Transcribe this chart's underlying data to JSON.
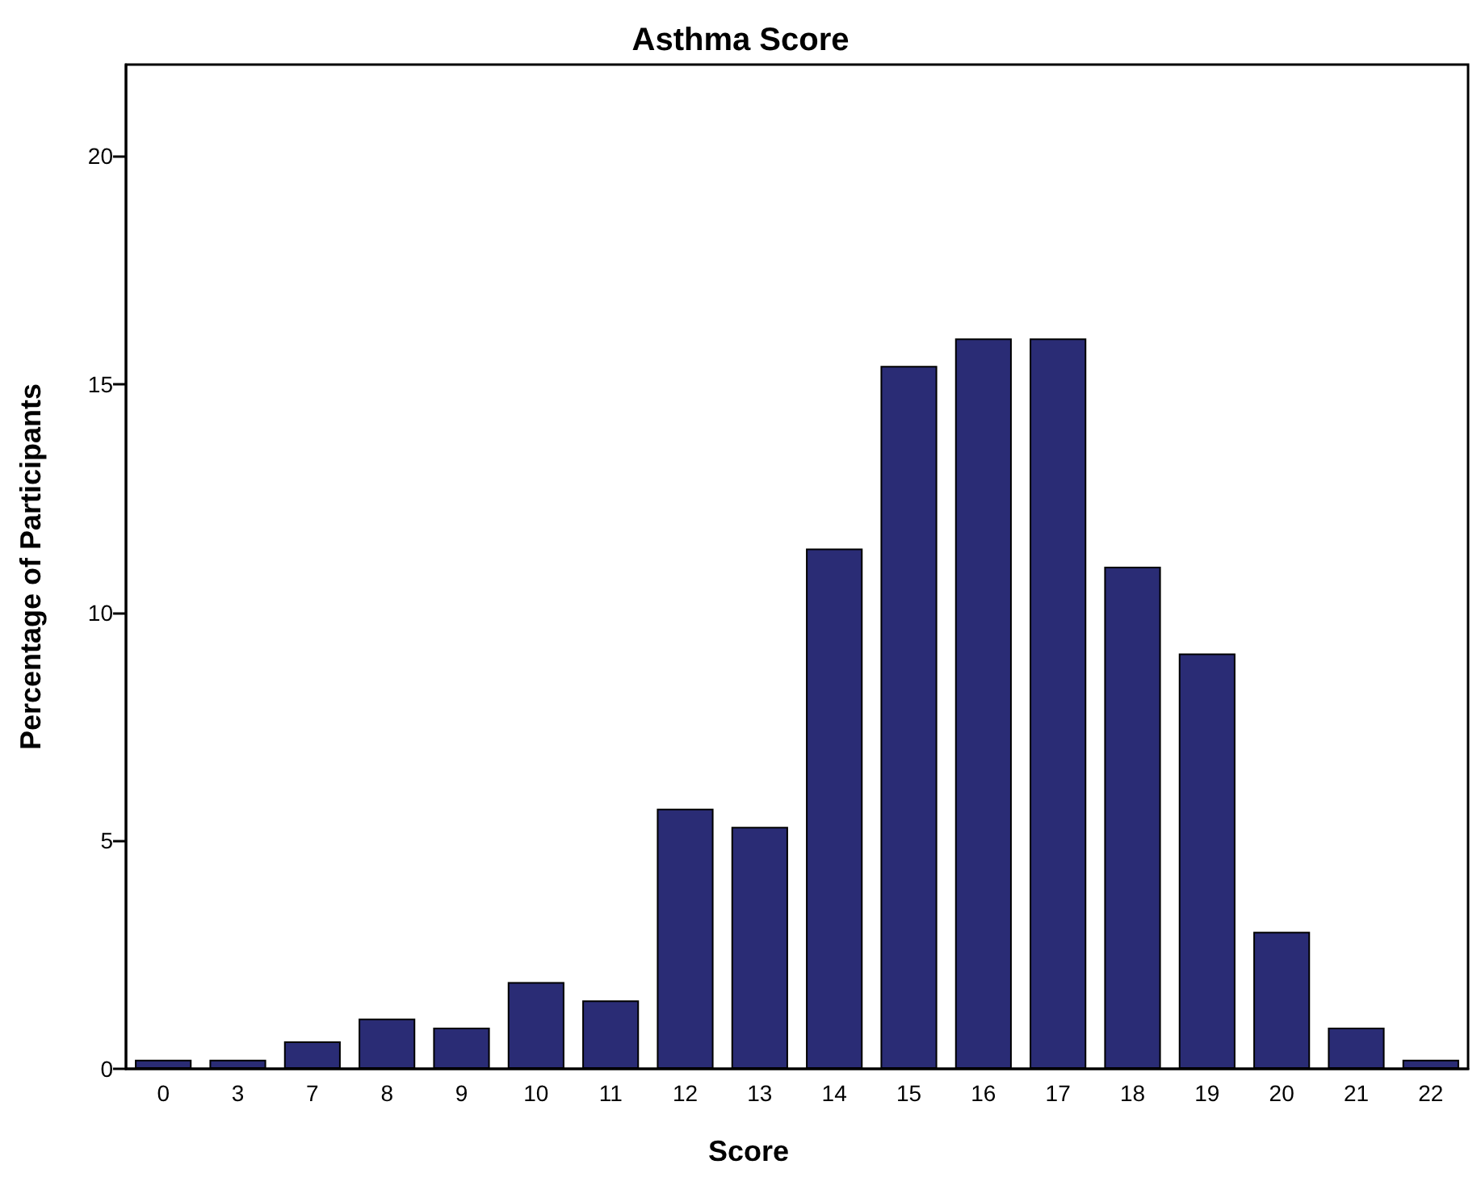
{
  "chart_data": {
    "type": "bar",
    "title": "Asthma Score",
    "xlabel": "Score",
    "ylabel": "Percentage of Participants",
    "categories": [
      "0",
      "3",
      "7",
      "8",
      "9",
      "10",
      "11",
      "12",
      "13",
      "14",
      "15",
      "16",
      "17",
      "18",
      "19",
      "20",
      "21",
      "22"
    ],
    "values": [
      0.2,
      0.2,
      0.6,
      1.1,
      0.9,
      1.9,
      1.5,
      5.7,
      5.3,
      11.4,
      15.4,
      16.0,
      16.0,
      11.0,
      9.1,
      3.0,
      0.9,
      0.2
    ],
    "color": "#2a2c75",
    "ylim": [
      0,
      22
    ],
    "yticks": [
      0,
      5,
      10,
      15,
      20
    ],
    "grid": false
  }
}
